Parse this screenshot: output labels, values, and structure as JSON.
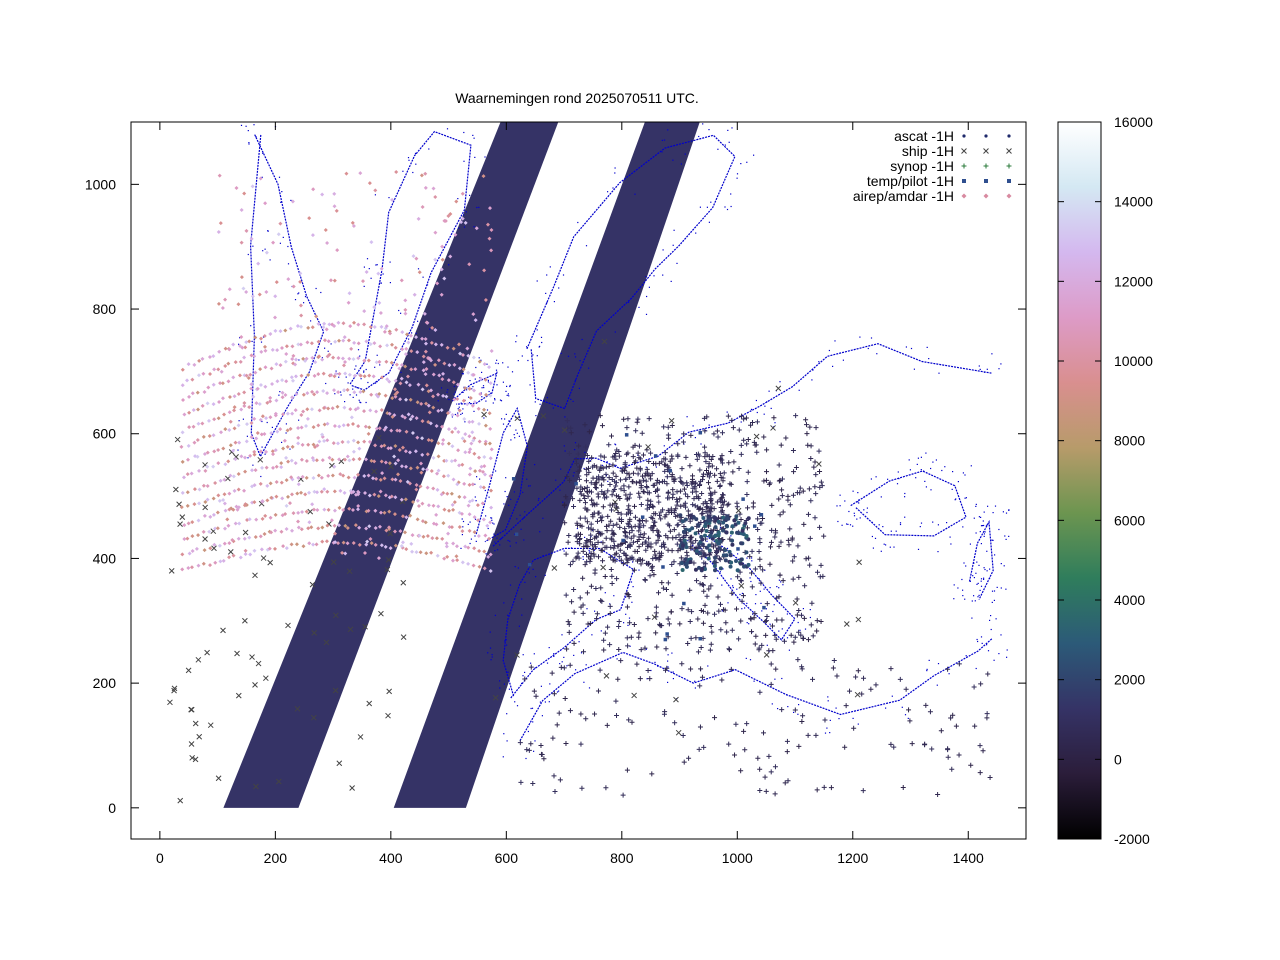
{
  "chart_data": {
    "type": "scatter",
    "title": "Waarnemingen rond 2025070511 UTC.",
    "xlim": [
      -50,
      1500
    ],
    "ylim": [
      -50,
      1100
    ],
    "x_ticks": [
      0,
      200,
      400,
      600,
      800,
      1000,
      1200,
      1400
    ],
    "y_ticks": [
      0,
      200,
      400,
      600,
      800,
      1000
    ],
    "grid": false,
    "legend_position": "top-right",
    "series": [
      {
        "name": "ascat -1H",
        "marker": "dot",
        "color": "#1f2a6b"
      },
      {
        "name": "ship -1H",
        "marker": "cross",
        "color": "#444444"
      },
      {
        "name": "synop -1H",
        "marker": "plus",
        "color": "#2a7a3a"
      },
      {
        "name": "temp/pilot -1H",
        "marker": "square",
        "color": "#2f4f8f"
      },
      {
        "name": "airep/amdar -1H",
        "marker": "diamond",
        "color": "#d88aa0"
      }
    ],
    "swaths": [
      {
        "bottom_x": [
          110,
          240
        ],
        "top_x": [
          590,
          690
        ],
        "y_range": [
          0,
          1100
        ]
      },
      {
        "bottom_x": [
          405,
          530
        ],
        "top_x": [
          840,
          935
        ],
        "y_range": [
          0,
          1100
        ]
      }
    ],
    "colorbar": {
      "min": -2000,
      "max": 16000,
      "ticks": [
        -2000,
        0,
        2000,
        4000,
        6000,
        8000,
        10000,
        12000,
        14000,
        16000
      ],
      "tick_labels": [
        "-2000",
        "0",
        "2000",
        "4000",
        "6000",
        "8000",
        "10000",
        "12000",
        "14000",
        "16000"
      ],
      "palette": [
        "#000000",
        "#2b1d3a",
        "#353366",
        "#2c5a78",
        "#2f7d5c",
        "#6c9550",
        "#b79b6a",
        "#d98f8f",
        "#dd9bc7",
        "#d4b8ef",
        "#d4e8f3",
        "#ffffff"
      ]
    },
    "overlay_colors": {
      "coastline": "#0000cc",
      "swath": "#353366"
    }
  }
}
